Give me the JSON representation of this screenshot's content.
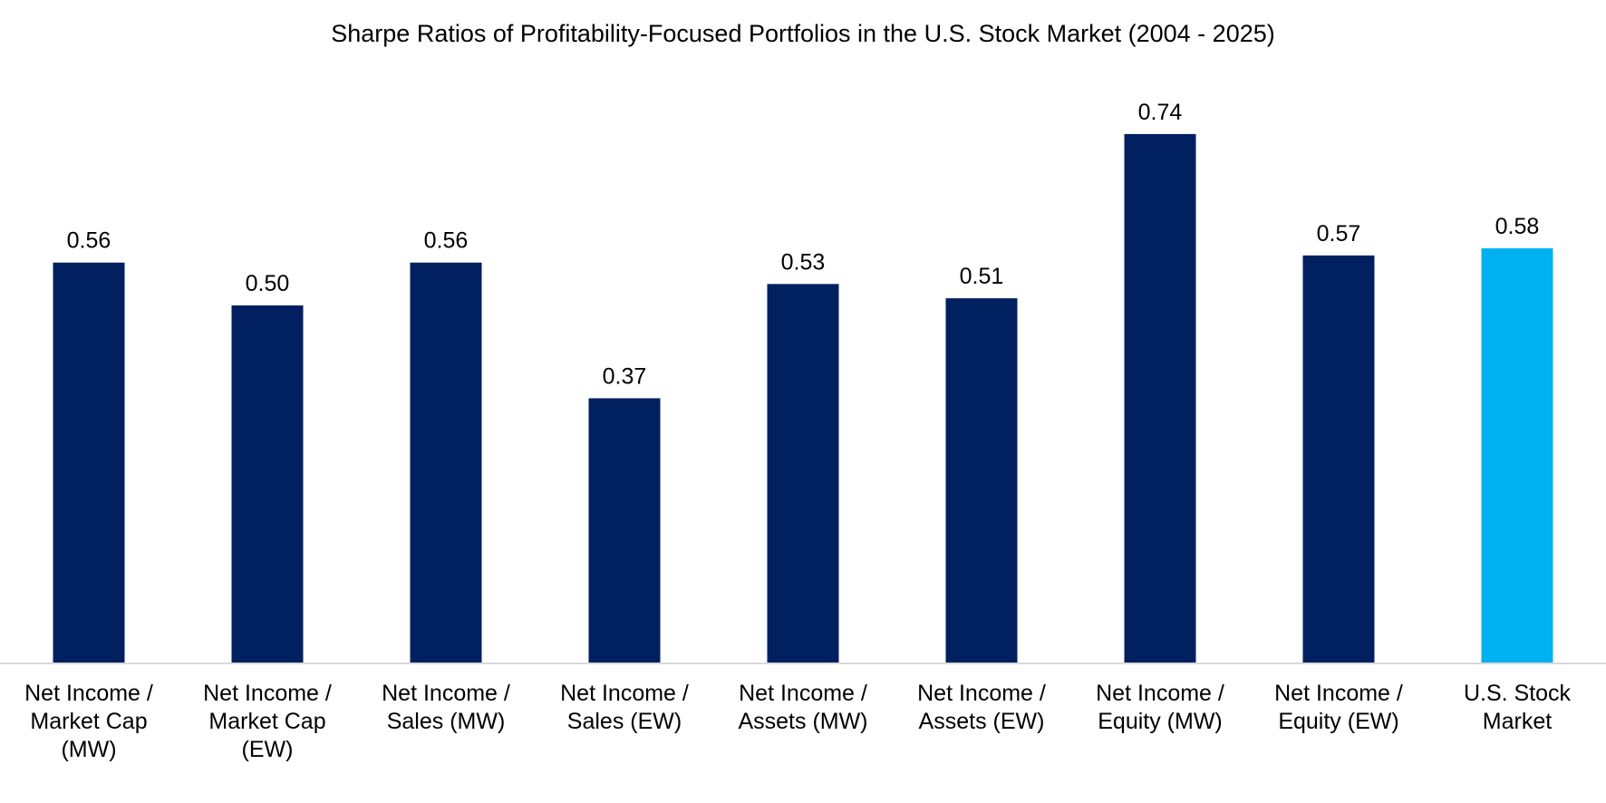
{
  "chart_data": {
    "type": "bar",
    "title": "Sharpe Ratios of Profitability-Focused Portfolios in the U.S. Stock Market (2004 - 2025)",
    "xlabel": "",
    "ylabel": "",
    "ylim": [
      0,
      0.8
    ],
    "grid": false,
    "legend": "none",
    "categories": [
      [
        "Net Income /",
        "Market Cap",
        "(MW)"
      ],
      [
        "Net Income /",
        "Market Cap",
        "(EW)"
      ],
      [
        "Net Income /",
        "Sales (MW)"
      ],
      [
        "Net Income /",
        "Sales (EW)"
      ],
      [
        "Net Income /",
        "Assets (MW)"
      ],
      [
        "Net Income /",
        "Assets (EW)"
      ],
      [
        "Net Income /",
        "Equity (MW)"
      ],
      [
        "Net Income /",
        "Equity (EW)"
      ],
      [
        "U.S. Stock",
        "Market"
      ]
    ],
    "values": [
      0.56,
      0.5,
      0.56,
      0.37,
      0.53,
      0.51,
      0.74,
      0.57,
      0.58
    ],
    "data_labels": [
      "0.56",
      "0.50",
      "0.56",
      "0.37",
      "0.53",
      "0.51",
      "0.74",
      "0.57",
      "0.58"
    ],
    "colors": [
      "#002060",
      "#002060",
      "#002060",
      "#002060",
      "#002060",
      "#002060",
      "#002060",
      "#002060",
      "#00B0F0"
    ],
    "axis_color": "#D9D9D9"
  }
}
